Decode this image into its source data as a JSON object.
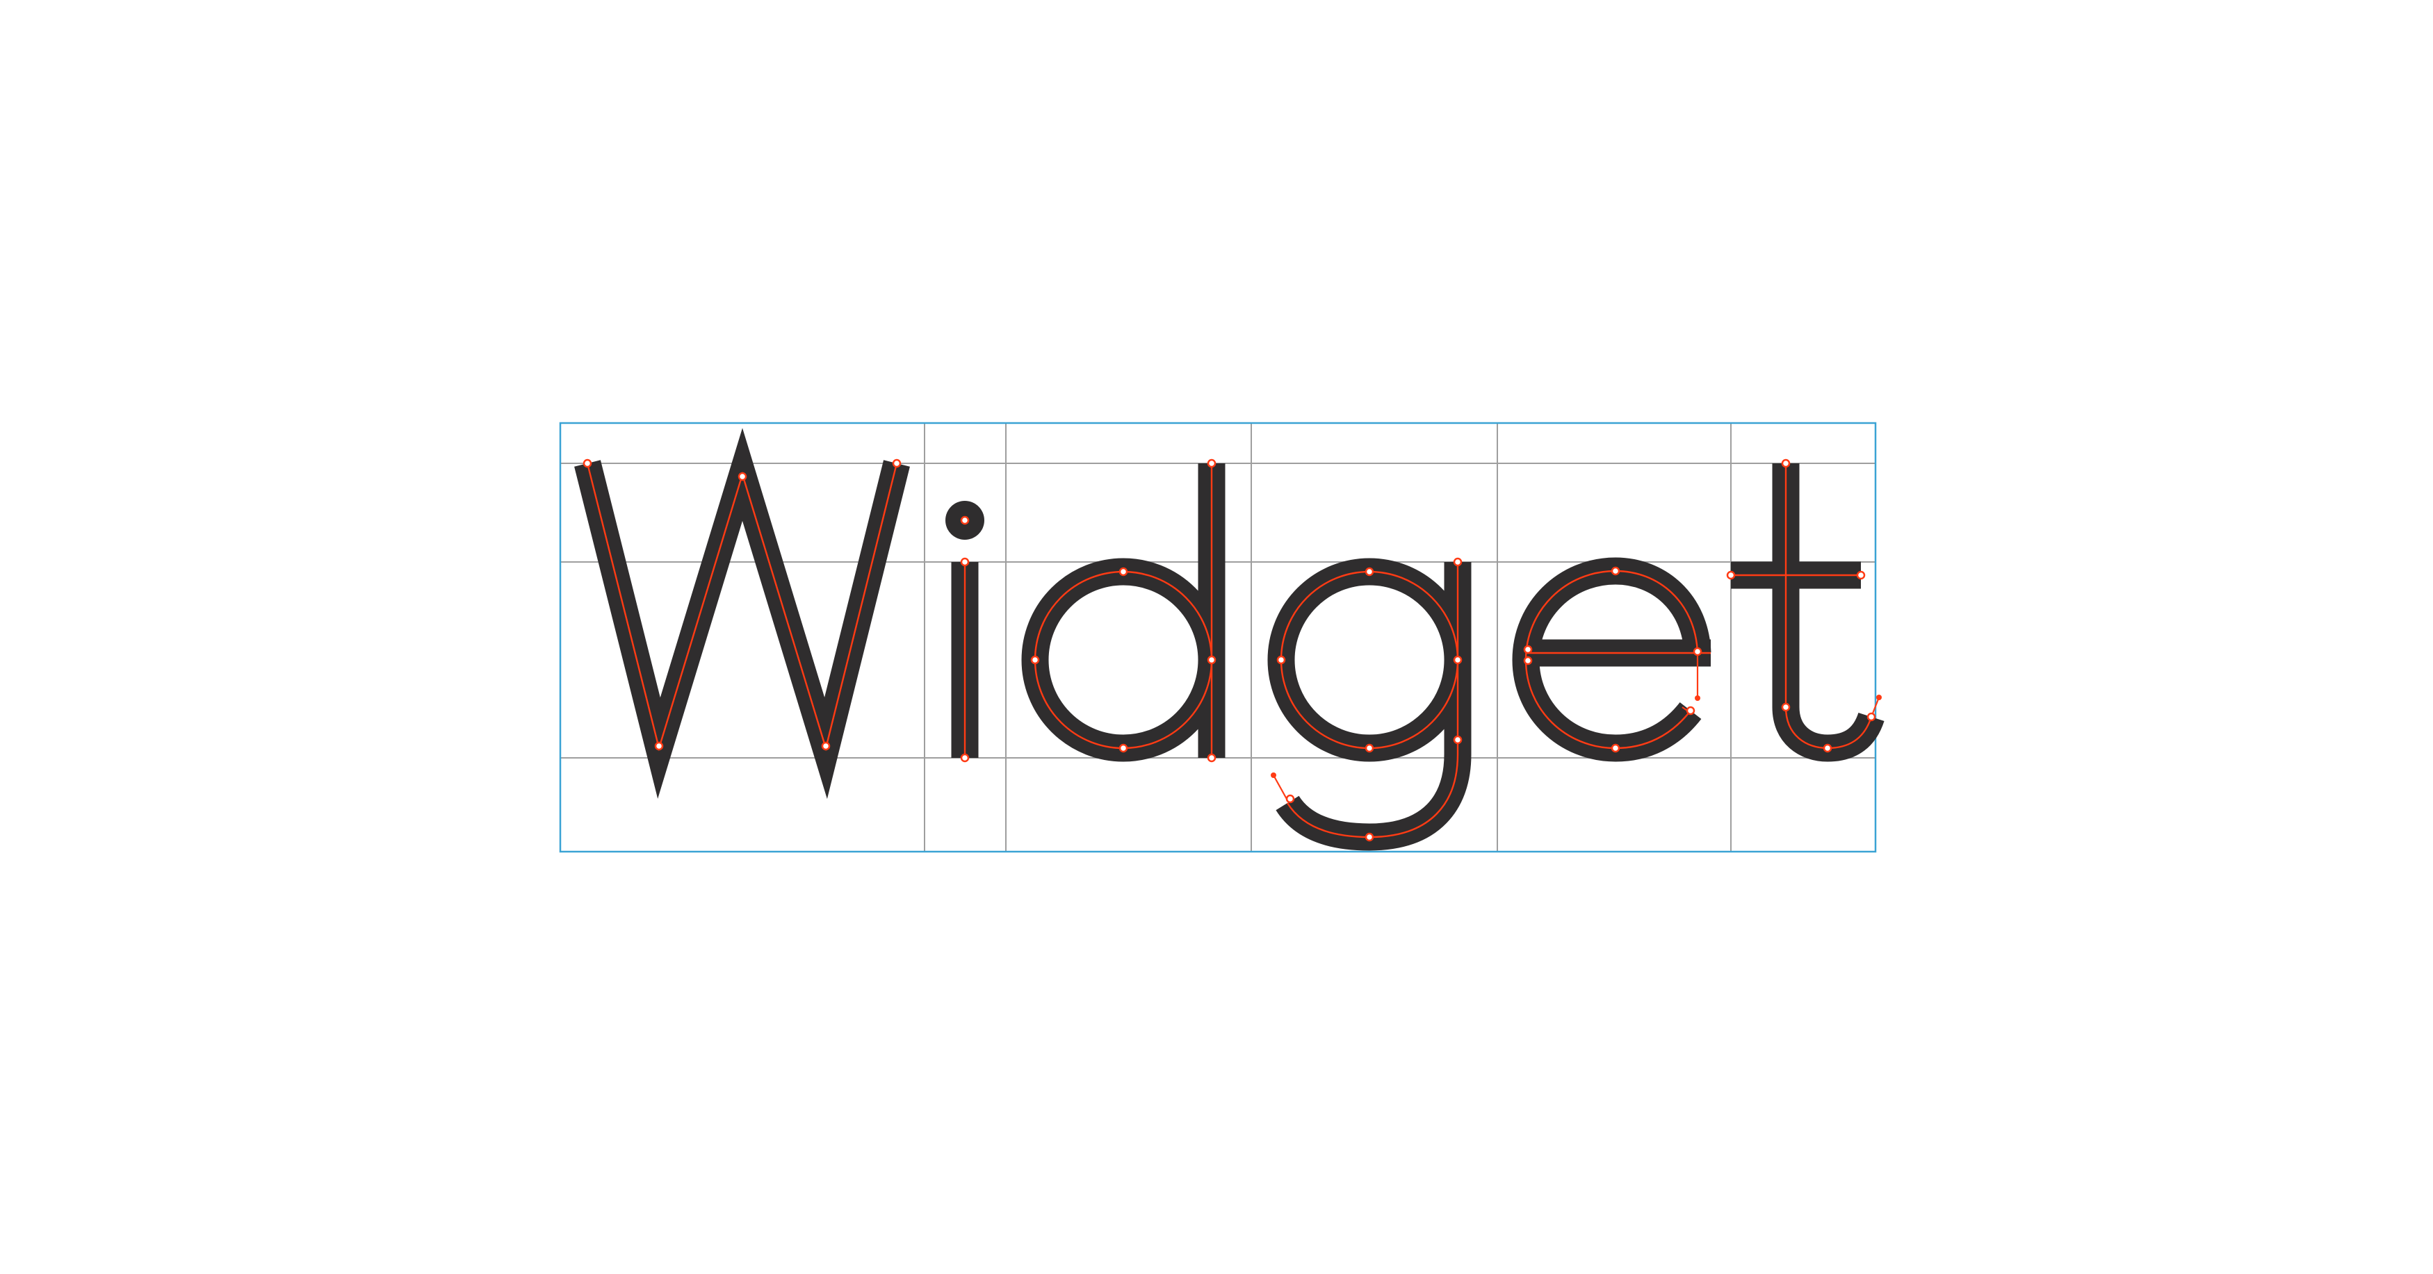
{
  "word": "Widget",
  "glyphs": [
    {
      "char": "W"
    },
    {
      "char": "i"
    },
    {
      "char": "d"
    },
    {
      "char": "g"
    },
    {
      "char": "e"
    },
    {
      "char": "t"
    }
  ],
  "colors": {
    "glyph_fill": "#2f2d2e",
    "skeleton": "#ff3b14",
    "anchor_fill": "#ffffff",
    "grid": "#9e9e9e",
    "frame": "#3aa3d4",
    "background": "#ffffff"
  }
}
